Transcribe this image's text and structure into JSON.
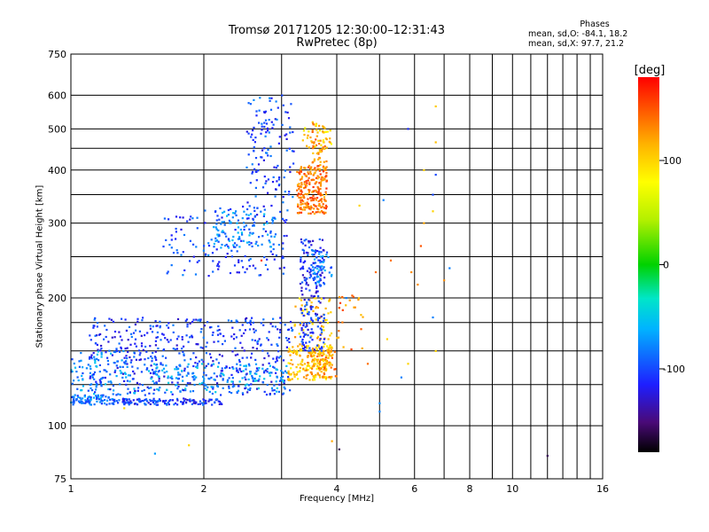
{
  "header": {
    "title_line1": "Tromsø 20171205 12:30:00–12:31:43",
    "title_line2": "RwPretec (8p)",
    "stats_heading": "Phases",
    "stats_o": "mean, sd,O: -84.1, 18.2",
    "stats_x": "mean, sd,X:  97.7, 21.2"
  },
  "colorbar": {
    "label": "[deg]",
    "min": -180,
    "max": 180,
    "ticks": [
      100,
      0,
      -100
    ],
    "tick_labels": [
      "100",
      "0",
      "-100"
    ]
  },
  "chart_data": {
    "type": "scatter",
    "xlabel": "Frequency [MHz]",
    "ylabel": "Stationary phase Virtual Height [km]",
    "x_scale": "log",
    "y_scale": "log",
    "xlim": [
      1,
      16
    ],
    "ylim": [
      75,
      750
    ],
    "grid": true,
    "x_ticks": [
      1,
      2,
      4,
      6,
      8,
      10,
      16
    ],
    "x_tick_labels": [
      "1",
      "2",
      "4",
      "6",
      "8",
      "10",
      "16"
    ],
    "x_minor_ticks": [
      3,
      5,
      7,
      9,
      11,
      12,
      13,
      14,
      15
    ],
    "y_ticks": [
      75,
      100,
      200,
      300,
      400,
      500,
      600,
      750
    ],
    "y_tick_labels": [
      "75",
      "100",
      "200",
      "300",
      "400",
      "500",
      "600",
      "750"
    ],
    "y_grid": [
      100,
      125,
      150,
      175,
      200,
      250,
      300,
      350,
      400,
      450,
      500,
      600
    ],
    "clusters": [
      {
        "x": [
          1.0,
          1.25
        ],
        "y": [
          112,
          118
        ],
        "phase": -85,
        "count": 90
      },
      {
        "x": [
          1.25,
          2.2
        ],
        "y": [
          112,
          116
        ],
        "phase": -105,
        "count": 140
      },
      {
        "x": [
          1.0,
          1.4
        ],
        "y": [
          118,
          150
        ],
        "phase": -75,
        "count": 110
      },
      {
        "x": [
          1.1,
          3.2
        ],
        "y": [
          118,
          180
        ],
        "phase": -105,
        "count": 520
      },
      {
        "x": [
          1.5,
          3.1
        ],
        "y": [
          120,
          140
        ],
        "phase": -70,
        "count": 160
      },
      {
        "x": [
          3.1,
          3.9
        ],
        "y": [
          128,
          155
        ],
        "phase": 105,
        "count": 180
      },
      {
        "x": [
          3.4,
          4.0
        ],
        "y": [
          130,
          150
        ],
        "phase": 130,
        "count": 70
      },
      {
        "x": [
          3.2,
          3.9
        ],
        "y": [
          150,
          200
        ],
        "phase": 110,
        "count": 70
      },
      {
        "x": [
          3.3,
          3.75
        ],
        "y": [
          150,
          275
        ],
        "phase": -110,
        "count": 190
      },
      {
        "x": [
          3.5,
          3.9
        ],
        "y": [
          215,
          260
        ],
        "phase": -80,
        "count": 50
      },
      {
        "x": [
          1.6,
          3.1
        ],
        "y": [
          225,
          330
        ],
        "phase": -100,
        "count": 160
      },
      {
        "x": [
          2.1,
          2.9
        ],
        "y": [
          260,
          320
        ],
        "phase": -75,
        "count": 90
      },
      {
        "x": [
          2.5,
          3.2
        ],
        "y": [
          320,
          600
        ],
        "phase": -100,
        "count": 130
      },
      {
        "x": [
          3.25,
          3.8
        ],
        "y": [
          315,
          410
        ],
        "phase": 140,
        "count": 220
      },
      {
        "x": [
          3.5,
          3.8
        ],
        "y": [
          400,
          520
        ],
        "phase": 125,
        "count": 60
      },
      {
        "x": [
          3.3,
          3.9
        ],
        "y": [
          450,
          520
        ],
        "phase": 100,
        "count": 30
      },
      {
        "x": [
          4.0,
          4.6
        ],
        "y": [
          150,
          205
        ],
        "phase": 135,
        "count": 25
      }
    ],
    "points": [
      [
        1.85,
        90,
        100
      ],
      [
        1.55,
        86,
        -70
      ],
      [
        1.32,
        110,
        100
      ],
      [
        5.0,
        108,
        -80
      ],
      [
        5.0,
        113,
        -75
      ],
      [
        5.6,
        130,
        -80
      ],
      [
        5.8,
        140,
        100
      ],
      [
        4.7,
        140,
        140
      ],
      [
        4.9,
        230,
        140
      ],
      [
        5.3,
        245,
        140
      ],
      [
        5.9,
        230,
        130
      ],
      [
        6.2,
        265,
        150
      ],
      [
        6.3,
        300,
        120
      ],
      [
        6.6,
        320,
        100
      ],
      [
        6.6,
        350,
        -100
      ],
      [
        6.7,
        390,
        -100
      ],
      [
        6.3,
        400,
        100
      ],
      [
        6.7,
        465,
        110
      ],
      [
        6.7,
        565,
        105
      ],
      [
        5.8,
        500,
        -110
      ],
      [
        6.6,
        180,
        -80
      ],
      [
        6.7,
        150,
        100
      ],
      [
        5.2,
        160,
        100
      ],
      [
        4.4,
        190,
        130
      ],
      [
        4.5,
        330,
        100
      ],
      [
        5.1,
        340,
        -80
      ],
      [
        7.2,
        235,
        -80
      ],
      [
        7.0,
        220,
        130
      ],
      [
        12.0,
        85,
        -160
      ],
      [
        4.05,
        88,
        -160
      ],
      [
        3.9,
        92,
        120
      ],
      [
        6.1,
        215,
        130
      ],
      [
        4.2,
        200,
        -80
      ],
      [
        2.7,
        245,
        160
      ]
    ]
  }
}
